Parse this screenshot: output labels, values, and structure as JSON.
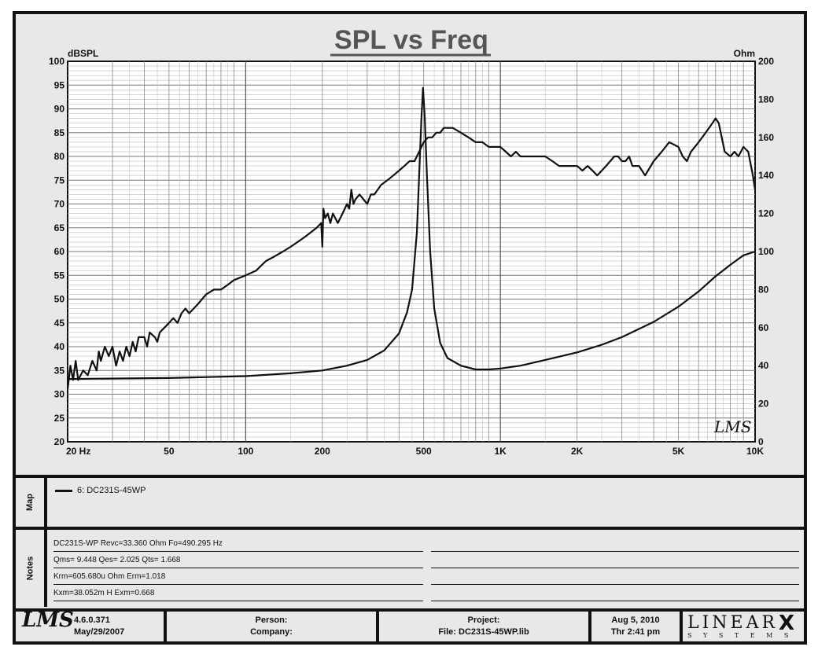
{
  "chart_data": {
    "type": "line",
    "title": "SPL vs Freq",
    "ylabel_left": "dBSPL",
    "ylabel_right": "Ohm",
    "x_scale": "log",
    "xlim": [
      20,
      10000
    ],
    "ylim_left": [
      20,
      100
    ],
    "ylim_right": [
      0,
      200
    ],
    "grid": true,
    "x_tick_labels": [
      {
        "value": 20,
        "label": "20  Hz"
      },
      {
        "value": 50,
        "label": "50"
      },
      {
        "value": 100,
        "label": "100"
      },
      {
        "value": 200,
        "label": "200"
      },
      {
        "value": 500,
        "label": "500"
      },
      {
        "value": 1000,
        "label": "1K"
      },
      {
        "value": 2000,
        "label": "2K"
      },
      {
        "value": 5000,
        "label": "5K"
      },
      {
        "value": 10000,
        "label": "10K"
      }
    ],
    "y_left_ticks": [
      "100",
      "95",
      "90",
      "85",
      "80",
      "75",
      "70",
      "65",
      "60",
      "55",
      "50",
      "45",
      "40",
      "35",
      "30",
      "25",
      "20"
    ],
    "y_right_ticks": [
      "200",
      "180",
      "160",
      "140",
      "120",
      "100",
      "80",
      "60",
      "40",
      "20",
      "0"
    ],
    "series": [
      {
        "name": "6: DC231S-45WP",
        "axis": "left",
        "points": [
          [
            20,
            31
          ],
          [
            20.5,
            36
          ],
          [
            21,
            33
          ],
          [
            21.5,
            37
          ],
          [
            22,
            33
          ],
          [
            23,
            35
          ],
          [
            24,
            34
          ],
          [
            25,
            37
          ],
          [
            26,
            35
          ],
          [
            26.5,
            39
          ],
          [
            27,
            37
          ],
          [
            28,
            40
          ],
          [
            29,
            38
          ],
          [
            30,
            40
          ],
          [
            31,
            36
          ],
          [
            32,
            39
          ],
          [
            33,
            37
          ],
          [
            34,
            40
          ],
          [
            35,
            38
          ],
          [
            36,
            41
          ],
          [
            37,
            39
          ],
          [
            38,
            42
          ],
          [
            40,
            42
          ],
          [
            41,
            40
          ],
          [
            42,
            43
          ],
          [
            44,
            42
          ],
          [
            45,
            41
          ],
          [
            46,
            43
          ],
          [
            48,
            44
          ],
          [
            50,
            45
          ],
          [
            52,
            46
          ],
          [
            54,
            45
          ],
          [
            56,
            47
          ],
          [
            58,
            48
          ],
          [
            60,
            47
          ],
          [
            65,
            49
          ],
          [
            70,
            51
          ],
          [
            75,
            52
          ],
          [
            80,
            52
          ],
          [
            85,
            53
          ],
          [
            90,
            54
          ],
          [
            100,
            55
          ],
          [
            110,
            56
          ],
          [
            120,
            58
          ],
          [
            130,
            59
          ],
          [
            140,
            60
          ],
          [
            150,
            61
          ],
          [
            160,
            62
          ],
          [
            170,
            63
          ],
          [
            180,
            64
          ],
          [
            190,
            65
          ],
          [
            198,
            66
          ],
          [
            200,
            61
          ],
          [
            202,
            69
          ],
          [
            205,
            67
          ],
          [
            210,
            68
          ],
          [
            215,
            66
          ],
          [
            220,
            68
          ],
          [
            230,
            66
          ],
          [
            240,
            68
          ],
          [
            250,
            70
          ],
          [
            255,
            69
          ],
          [
            260,
            73
          ],
          [
            265,
            70
          ],
          [
            270,
            71
          ],
          [
            280,
            72
          ],
          [
            290,
            71
          ],
          [
            300,
            70
          ],
          [
            310,
            72
          ],
          [
            320,
            72
          ],
          [
            340,
            74
          ],
          [
            360,
            75
          ],
          [
            380,
            76
          ],
          [
            400,
            77
          ],
          [
            420,
            78
          ],
          [
            440,
            79
          ],
          [
            460,
            79
          ],
          [
            470,
            80
          ],
          [
            480,
            81
          ],
          [
            500,
            83
          ],
          [
            520,
            84
          ],
          [
            540,
            84
          ],
          [
            560,
            85
          ],
          [
            580,
            85
          ],
          [
            600,
            86
          ],
          [
            650,
            86
          ],
          [
            700,
            85
          ],
          [
            750,
            84
          ],
          [
            800,
            83
          ],
          [
            850,
            83
          ],
          [
            900,
            82
          ],
          [
            950,
            82
          ],
          [
            1000,
            82
          ],
          [
            1050,
            81
          ],
          [
            1100,
            80
          ],
          [
            1150,
            81
          ],
          [
            1200,
            80
          ],
          [
            1300,
            80
          ],
          [
            1400,
            80
          ],
          [
            1500,
            80
          ],
          [
            1600,
            79
          ],
          [
            1700,
            78
          ],
          [
            1800,
            78
          ],
          [
            1900,
            78
          ],
          [
            2000,
            78
          ],
          [
            2100,
            77
          ],
          [
            2200,
            78
          ],
          [
            2300,
            77
          ],
          [
            2400,
            76
          ],
          [
            2500,
            77
          ],
          [
            2600,
            78
          ],
          [
            2700,
            79
          ],
          [
            2800,
            80
          ],
          [
            2900,
            80
          ],
          [
            3000,
            79
          ],
          [
            3100,
            79
          ],
          [
            3200,
            80
          ],
          [
            3300,
            78
          ],
          [
            3500,
            78
          ],
          [
            3700,
            76
          ],
          [
            4000,
            79
          ],
          [
            4300,
            81
          ],
          [
            4600,
            83
          ],
          [
            5000,
            82
          ],
          [
            5200,
            80
          ],
          [
            5400,
            79
          ],
          [
            5600,
            81
          ],
          [
            6000,
            83
          ],
          [
            6400,
            85
          ],
          [
            6800,
            87
          ],
          [
            7000,
            88
          ],
          [
            7200,
            87
          ],
          [
            7600,
            81
          ],
          [
            8000,
            80
          ],
          [
            8300,
            81
          ],
          [
            8600,
            80
          ],
          [
            9000,
            82
          ],
          [
            9400,
            81
          ],
          [
            9800,
            76
          ],
          [
            10000,
            73
          ]
        ]
      },
      {
        "name": "",
        "axis": "right",
        "points": [
          [
            20,
            33
          ],
          [
            50,
            33.5
          ],
          [
            100,
            34.5
          ],
          [
            150,
            36
          ],
          [
            200,
            37.5
          ],
          [
            250,
            40
          ],
          [
            300,
            43
          ],
          [
            350,
            48
          ],
          [
            400,
            57
          ],
          [
            430,
            68
          ],
          [
            450,
            80
          ],
          [
            470,
            110
          ],
          [
            480,
            140
          ],
          [
            490,
            170
          ],
          [
            497,
            186
          ],
          [
            505,
            170
          ],
          [
            515,
            140
          ],
          [
            530,
            100
          ],
          [
            550,
            70
          ],
          [
            580,
            52
          ],
          [
            620,
            44
          ],
          [
            700,
            40
          ],
          [
            800,
            38
          ],
          [
            900,
            38
          ],
          [
            1000,
            38.5
          ],
          [
            1200,
            40
          ],
          [
            1500,
            43
          ],
          [
            2000,
            47
          ],
          [
            2500,
            51
          ],
          [
            3000,
            55
          ],
          [
            4000,
            63
          ],
          [
            5000,
            71
          ],
          [
            6000,
            79
          ],
          [
            7000,
            87
          ],
          [
            8000,
            93
          ],
          [
            9000,
            98
          ],
          [
            10000,
            100
          ]
        ]
      }
    ]
  },
  "side_labels": {
    "map": "Map",
    "notes": "Notes"
  },
  "legend": {
    "label": "6: DC231S-45WP"
  },
  "notes": [
    "DC231S-WP  Revc=33.360 Ohm  Fo=490.295 Hz",
    "Qms= 9.448  Qes= 2.025  Qts= 1.668",
    "Krm=605.680u Ohm  Erm=1.018",
    "Kxm=38.052m H  Exm=0.668"
  ],
  "watermark": "LMS",
  "footer": {
    "logo": "LMS",
    "version": "4.6.0.371",
    "version_date": "May/29/2007",
    "person": "Person:",
    "company": "Company:",
    "project": "Project:",
    "file": "File: DC231S-45WP.lib",
    "date": "Aug  5, 2010",
    "time": "Thr  2:41 pm",
    "brand_main": "LINEAR",
    "brand_x": "X",
    "brand_sub": "S Y S T E M S"
  }
}
